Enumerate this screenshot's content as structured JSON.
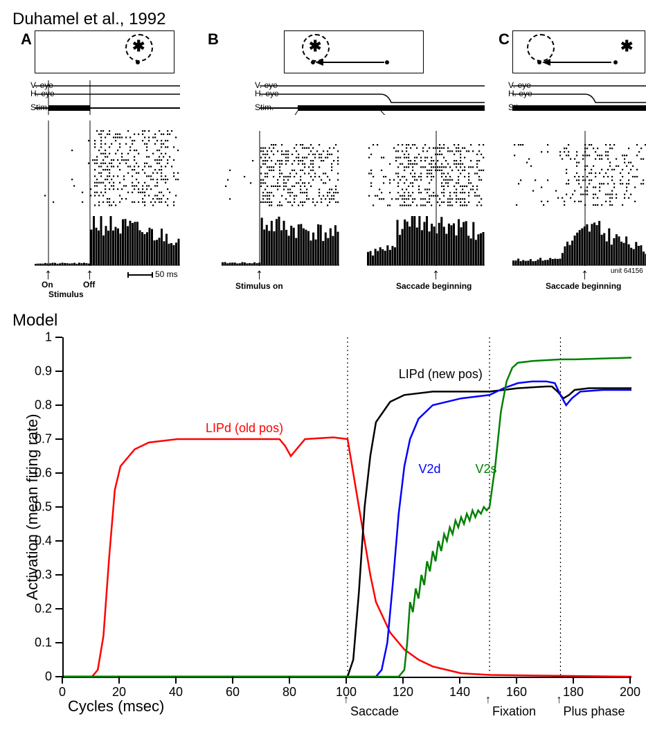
{
  "top": {
    "citation": "Duhamel et al., 1992",
    "panels": {
      "A": {
        "label": "A",
        "event1": "On",
        "event2": "Off",
        "event_sub": "Stimulus",
        "scalebar": "50 ms"
      },
      "B": {
        "label": "B",
        "event_left": "Stimulus on",
        "event_right": "Saccade beginning"
      },
      "C": {
        "label": "C",
        "event": "Saccade beginning",
        "unit": "unit 64156"
      },
      "trace_labels": {
        "veye": "V. eye",
        "heye": "H. eye",
        "stim": "Stim."
      }
    }
  },
  "model": {
    "title": "Model",
    "ylabel": "Activation (mean firing rate)",
    "xlabel": "Cycles (msec)",
    "xlim": [
      0,
      200
    ],
    "ylim": [
      0,
      1
    ],
    "yticks": [
      0,
      0.1,
      0.2,
      0.3,
      0.4,
      0.5,
      0.6,
      0.7,
      0.8,
      0.9,
      1
    ],
    "xticks": [
      0,
      20,
      40,
      60,
      80,
      100,
      120,
      140,
      160,
      180,
      200
    ],
    "vlines": [
      100,
      150,
      175
    ],
    "events": [
      {
        "x": 100,
        "label": "Saccade"
      },
      {
        "x": 150,
        "label": "Fixation"
      },
      {
        "x": 175,
        "label": "Plus phase"
      }
    ],
    "series": {
      "LIPd_old": {
        "label": "LIPd (old pos)",
        "color": "#ff0000",
        "label_pos": {
          "x": 50,
          "y": 0.72
        },
        "data": [
          [
            0,
            0
          ],
          [
            10,
            0
          ],
          [
            12,
            0.02
          ],
          [
            14,
            0.12
          ],
          [
            16,
            0.35
          ],
          [
            18,
            0.55
          ],
          [
            20,
            0.62
          ],
          [
            25,
            0.67
          ],
          [
            30,
            0.69
          ],
          [
            40,
            0.7
          ],
          [
            60,
            0.7
          ],
          [
            76,
            0.7
          ],
          [
            78,
            0.68
          ],
          [
            80,
            0.65
          ],
          [
            82,
            0.67
          ],
          [
            85,
            0.7
          ],
          [
            95,
            0.705
          ],
          [
            100,
            0.7
          ],
          [
            102,
            0.6
          ],
          [
            104,
            0.5
          ],
          [
            106,
            0.4
          ],
          [
            108,
            0.3
          ],
          [
            110,
            0.22
          ],
          [
            115,
            0.13
          ],
          [
            120,
            0.08
          ],
          [
            125,
            0.05
          ],
          [
            130,
            0.03
          ],
          [
            140,
            0.01
          ],
          [
            150,
            0.005
          ],
          [
            200,
            0
          ]
        ]
      },
      "LIPd_new": {
        "label": "LIPd (new pos)",
        "color": "#000000",
        "label_pos": {
          "x": 118,
          "y": 0.88
        },
        "data": [
          [
            0,
            0
          ],
          [
            100,
            0
          ],
          [
            102,
            0.05
          ],
          [
            104,
            0.25
          ],
          [
            106,
            0.5
          ],
          [
            108,
            0.65
          ],
          [
            110,
            0.75
          ],
          [
            115,
            0.81
          ],
          [
            120,
            0.83
          ],
          [
            130,
            0.84
          ],
          [
            150,
            0.84
          ],
          [
            155,
            0.845
          ],
          [
            160,
            0.85
          ],
          [
            170,
            0.855
          ],
          [
            172,
            0.855
          ],
          [
            174,
            0.84
          ],
          [
            176,
            0.82
          ],
          [
            178,
            0.83
          ],
          [
            180,
            0.845
          ],
          [
            185,
            0.85
          ],
          [
            200,
            0.85
          ]
        ]
      },
      "V2d": {
        "label": "V2d",
        "color": "#0000ff",
        "label_pos": {
          "x": 125,
          "y": 0.6
        },
        "data": [
          [
            0,
            0
          ],
          [
            110,
            0
          ],
          [
            112,
            0.02
          ],
          [
            114,
            0.1
          ],
          [
            116,
            0.28
          ],
          [
            118,
            0.48
          ],
          [
            120,
            0.62
          ],
          [
            122,
            0.7
          ],
          [
            125,
            0.76
          ],
          [
            130,
            0.8
          ],
          [
            140,
            0.82
          ],
          [
            150,
            0.83
          ],
          [
            155,
            0.85
          ],
          [
            160,
            0.865
          ],
          [
            165,
            0.87
          ],
          [
            170,
            0.87
          ],
          [
            173,
            0.865
          ],
          [
            175,
            0.83
          ],
          [
            177,
            0.8
          ],
          [
            179,
            0.82
          ],
          [
            182,
            0.84
          ],
          [
            190,
            0.845
          ],
          [
            200,
            0.845
          ]
        ]
      },
      "V2s": {
        "label": "V2s",
        "color": "#008000",
        "label_pos": {
          "x": 145,
          "y": 0.6
        },
        "data": [
          [
            0,
            0
          ],
          [
            118,
            0
          ],
          [
            120,
            0.02
          ],
          [
            121,
            0.1
          ],
          [
            122,
            0.22
          ],
          [
            123,
            0.19
          ],
          [
            124,
            0.26
          ],
          [
            125,
            0.23
          ],
          [
            126,
            0.3
          ],
          [
            127,
            0.27
          ],
          [
            128,
            0.34
          ],
          [
            129,
            0.31
          ],
          [
            130,
            0.37
          ],
          [
            131,
            0.34
          ],
          [
            132,
            0.4
          ],
          [
            133,
            0.37
          ],
          [
            134,
            0.42
          ],
          [
            135,
            0.4
          ],
          [
            136,
            0.44
          ],
          [
            137,
            0.42
          ],
          [
            138,
            0.46
          ],
          [
            139,
            0.44
          ],
          [
            140,
            0.47
          ],
          [
            141,
            0.45
          ],
          [
            142,
            0.48
          ],
          [
            143,
            0.46
          ],
          [
            144,
            0.49
          ],
          [
            145,
            0.47
          ],
          [
            146,
            0.49
          ],
          [
            147,
            0.48
          ],
          [
            148,
            0.5
          ],
          [
            149,
            0.49
          ],
          [
            150,
            0.5
          ],
          [
            152,
            0.62
          ],
          [
            154,
            0.78
          ],
          [
            156,
            0.87
          ],
          [
            158,
            0.91
          ],
          [
            160,
            0.925
          ],
          [
            165,
            0.93
          ],
          [
            175,
            0.935
          ],
          [
            180,
            0.935
          ],
          [
            200,
            0.94
          ]
        ]
      }
    }
  }
}
